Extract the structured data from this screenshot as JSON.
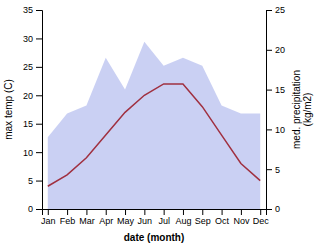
{
  "chart_data": {
    "type": "line",
    "categories": [
      "Jan",
      "Feb",
      "Mar",
      "Apr",
      "May",
      "Jun",
      "Jul",
      "Aug",
      "Sep",
      "Oct",
      "Nov",
      "Dec"
    ],
    "xlabel": "date (month)",
    "ylabel": "max temp (C)",
    "y2label": "med. precipitation\n(kg/m2)",
    "series": [
      {
        "type": "line",
        "color": "#a03040",
        "values": [
          4,
          6,
          9,
          13,
          17,
          20,
          22,
          22,
          18,
          13,
          8,
          5
        ]
      },
      {
        "type": "area",
        "axis": "y2",
        "color": "#b3bcee",
        "values": [
          9,
          12,
          13,
          19,
          15,
          21,
          18,
          19,
          18,
          13,
          12,
          12
        ]
      }
    ],
    "ylim": [
      0,
      35
    ],
    "yticks": [
      0,
      5,
      10,
      15,
      20,
      25,
      30,
      35
    ],
    "y2lim": [
      0,
      25
    ],
    "y2ticks": [
      0,
      5,
      10,
      15,
      20,
      25
    ]
  }
}
